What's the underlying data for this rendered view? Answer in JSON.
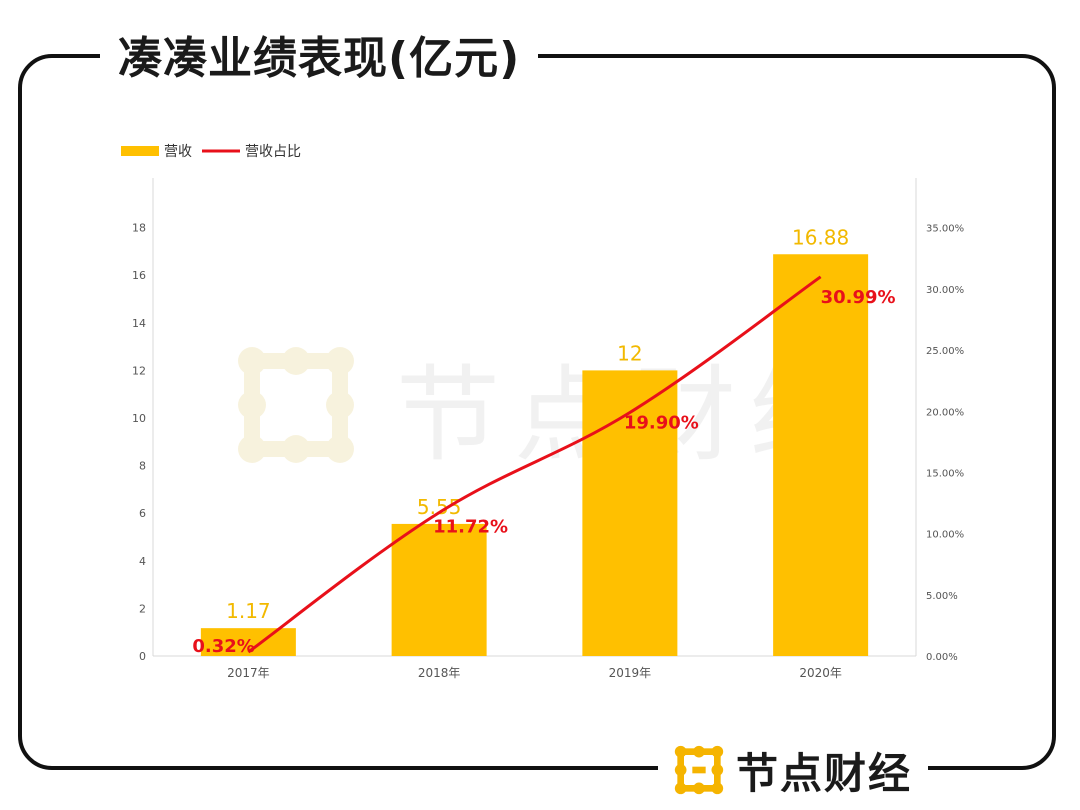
{
  "header": {
    "title": "凑凑业绩表现(亿元)"
  },
  "brand": {
    "name": "节点财经",
    "logo_icon": "node-logo-icon",
    "logo_color": "#F5B400"
  },
  "colors": {
    "bar": "#FFC000",
    "line": "#E8101A",
    "bar_label": "#F2B900",
    "line_label": "#E8101A",
    "axis_text": "#555555",
    "axis_line": "#D9D9D9"
  },
  "chart_data": {
    "type": "bar",
    "title": "",
    "categories": [
      "2017年",
      "2018年",
      "2019年",
      "2020年"
    ],
    "series": [
      {
        "name": "营收",
        "type": "bar",
        "axis": "left",
        "values": [
          1.17,
          5.55,
          12,
          16.88
        ],
        "labels": [
          "1.17",
          "5.55",
          "12",
          "16.88"
        ]
      },
      {
        "name": "营收占比",
        "type": "line",
        "axis": "right",
        "values": [
          0.32,
          11.72,
          19.9,
          30.99
        ],
        "labels": [
          "0.32%",
          "11.72%",
          "19.90%",
          "30.99%"
        ]
      }
    ],
    "y_left": {
      "range": [
        0,
        20
      ],
      "ticks": [
        "0",
        "2",
        "4",
        "6",
        "8",
        "10",
        "12",
        "14",
        "16",
        "18"
      ]
    },
    "y_right": {
      "range": [
        0,
        38.9
      ],
      "ticks": [
        "0.00%",
        "5.00%",
        "10.00%",
        "15.00%",
        "20.00%",
        "25.00%",
        "30.00%",
        "35.00%"
      ]
    },
    "legend": {
      "position": "top-left"
    },
    "grid": false
  }
}
